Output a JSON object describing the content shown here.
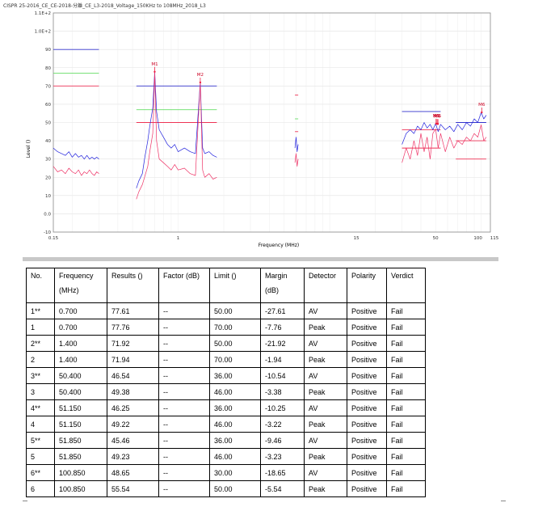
{
  "chart_data": {
    "type": "line",
    "title": "CISPR 25-2016_CE_CE-2018-分離_CE_L3-2018_Voltage_150KHz to 108MHz_2018_L3",
    "xlabel": "Frequency (MHz)",
    "ylabel": "Level ()",
    "x_scale": "log",
    "xlim": [
      0.15,
      115
    ],
    "ylim": [
      -10,
      110
    ],
    "x_ticks": [
      {
        "value": 0.15,
        "label": "0.15"
      },
      {
        "value": 1,
        "label": "1"
      },
      {
        "value": 15,
        "label": "15"
      },
      {
        "value": 50,
        "label": "50"
      },
      {
        "value": 100,
        "label": "100"
      },
      {
        "value": 115,
        "label": "115"
      }
    ],
    "y_ticks": [
      {
        "value": 110,
        "label": "1.1E+2"
      },
      {
        "value": 100,
        "label": "1.0E+2"
      },
      {
        "value": 90,
        "label": "90"
      },
      {
        "value": 80,
        "label": "80"
      },
      {
        "value": 70,
        "label": "70"
      },
      {
        "value": 60,
        "label": "60"
      },
      {
        "value": 50,
        "label": "50"
      },
      {
        "value": 40,
        "label": "40"
      },
      {
        "value": 30,
        "label": "30"
      },
      {
        "value": 20,
        "label": "20"
      },
      {
        "value": 10,
        "label": "10"
      },
      {
        "value": 0,
        "label": "0.0"
      },
      {
        "value": -10,
        "label": "-10"
      }
    ],
    "grid": true,
    "limit_lines": [
      {
        "color": "#3333cc",
        "x": [
          0.15,
          0.3
        ],
        "y": 90
      },
      {
        "color": "#66dd66",
        "x": [
          0.15,
          0.3
        ],
        "y": 77
      },
      {
        "color": "#ee3355",
        "x": [
          0.15,
          0.3
        ],
        "y": 70
      },
      {
        "color": "#3333cc",
        "x": [
          0.53,
          1.8
        ],
        "y": 70
      },
      {
        "color": "#66dd66",
        "x": [
          0.53,
          1.8
        ],
        "y": 57
      },
      {
        "color": "#ee3355",
        "x": [
          0.53,
          1.8
        ],
        "y": 50
      },
      {
        "color": "#ee3355",
        "x": [
          5.9,
          6.2
        ],
        "y": 65
      },
      {
        "color": "#66dd66",
        "x": [
          5.9,
          6.2
        ],
        "y": 52
      },
      {
        "color": "#ee3355",
        "x": [
          5.9,
          6.2
        ],
        "y": 45
      },
      {
        "color": "#3333cc",
        "x": [
          30,
          54
        ],
        "y": 56
      },
      {
        "color": "#ee3355",
        "x": [
          30,
          54
        ],
        "y": 46
      },
      {
        "color": "#ee3355",
        "x": [
          30,
          54
        ],
        "y": 36
      },
      {
        "color": "#3333cc",
        "x": [
          68,
          108
        ],
        "y": 50
      },
      {
        "color": "#ee3355",
        "x": [
          68,
          108
        ],
        "y": 40
      },
      {
        "color": "#ee3355",
        "x": [
          68,
          108
        ],
        "y": 30
      }
    ],
    "series": [
      {
        "color": "#2222dd",
        "x": [
          0.15,
          0.16,
          0.17,
          0.18,
          0.19,
          0.2,
          0.21,
          0.22,
          0.23,
          0.24,
          0.25,
          0.26,
          0.27,
          0.28,
          0.29,
          0.3
        ],
        "y": [
          36,
          34,
          33,
          32,
          34,
          31,
          33,
          31,
          32,
          30,
          32,
          30,
          31,
          30,
          31,
          30
        ]
      },
      {
        "color": "#ee3366",
        "x": [
          0.15,
          0.16,
          0.17,
          0.18,
          0.19,
          0.2,
          0.21,
          0.22,
          0.23,
          0.24,
          0.25,
          0.26,
          0.27,
          0.28,
          0.29,
          0.3
        ],
        "y": [
          26,
          23,
          24,
          22,
          25,
          23,
          22,
          24,
          21,
          23,
          22,
          24,
          22,
          21,
          23,
          22
        ]
      },
      {
        "color": "#2222dd",
        "x": [
          0.53,
          0.55,
          0.58,
          0.6,
          0.63,
          0.65,
          0.68,
          0.7,
          0.72,
          0.75,
          0.8,
          0.85,
          0.9,
          0.95,
          1.0,
          1.1,
          1.2,
          1.3,
          1.4,
          1.45,
          1.5,
          1.6,
          1.7,
          1.8
        ],
        "y": [
          14,
          18,
          22,
          30,
          40,
          48,
          58,
          77.8,
          56,
          46,
          42,
          38,
          36,
          38,
          34,
          36,
          34,
          33,
          71.9,
          36,
          33,
          34,
          32,
          31
        ]
      },
      {
        "color": "#ee3366",
        "x": [
          0.53,
          0.55,
          0.58,
          0.6,
          0.63,
          0.65,
          0.68,
          0.7,
          0.72,
          0.75,
          0.8,
          0.85,
          0.9,
          0.95,
          1.0,
          1.1,
          1.2,
          1.3,
          1.4,
          1.45,
          1.5,
          1.6,
          1.7,
          1.8
        ],
        "y": [
          8,
          12,
          16,
          20,
          26,
          34,
          44,
          77.6,
          40,
          30,
          28,
          26,
          24,
          27,
          24,
          25,
          22,
          21,
          71.9,
          24,
          20,
          22,
          19,
          20
        ]
      },
      {
        "color": "#2222dd",
        "x": [
          5.9,
          6.0,
          6.1,
          6.2
        ],
        "y": [
          36,
          42,
          34,
          38
        ]
      },
      {
        "color": "#ee3366",
        "x": [
          5.9,
          6.0,
          6.1,
          6.2
        ],
        "y": [
          28,
          33,
          26,
          30
        ]
      },
      {
        "color": "#2222dd",
        "x": [
          30,
          32,
          34,
          36,
          38,
          40,
          42,
          44,
          46,
          48,
          50,
          52,
          54,
          58,
          62,
          66,
          70,
          75,
          80,
          85,
          90,
          95,
          100,
          104,
          108
        ],
        "y": [
          38,
          44,
          46,
          44,
          48,
          46,
          50,
          47,
          49,
          46,
          49.4,
          45,
          49,
          46,
          48,
          45,
          49,
          46,
          50,
          48,
          52,
          50,
          55.5,
          52,
          54
        ]
      },
      {
        "color": "#ee3366",
        "x": [
          30,
          32,
          34,
          36,
          38,
          40,
          42,
          44,
          46,
          48,
          50,
          52,
          54,
          58,
          62,
          66,
          70,
          75,
          80,
          85,
          90,
          95,
          100,
          104,
          108
        ],
        "y": [
          28,
          36,
          30,
          40,
          32,
          44,
          34,
          42,
          30,
          44,
          46.5,
          36,
          44,
          34,
          42,
          36,
          40,
          38,
          42,
          40,
          44,
          42,
          48.7,
          40,
          42
        ]
      }
    ],
    "markers": [
      {
        "label": "M1",
        "x": 0.7,
        "y": 77.76
      },
      {
        "label": "M2",
        "x": 1.4,
        "y": 71.94
      },
      {
        "label": "M3",
        "x": 50.4,
        "y": 49.38
      },
      {
        "label": "M4",
        "x": 51.15,
        "y": 49.22
      },
      {
        "label": "M5",
        "x": 51.85,
        "y": 49.23
      },
      {
        "label": "M6",
        "x": 100.85,
        "y": 55.54
      }
    ]
  },
  "table": {
    "headers": [
      "No.",
      "Frequency",
      "Results ()",
      "Factor (dB)",
      "Limit ()",
      "Margin",
      "Detector",
      "Polarity",
      "Verdict"
    ],
    "header_second_lines": [
      "",
      "(MHz)",
      "",
      "",
      "",
      "(dB)",
      "",
      "",
      ""
    ],
    "rows": [
      [
        "1**",
        "0.700",
        "77.61",
        "--",
        "50.00",
        "-27.61",
        "AV",
        "Positive",
        "Fail"
      ],
      [
        "1",
        "0.700",
        "77.76",
        "--",
        "70.00",
        "-7.76",
        "Peak",
        "Positive",
        "Fail"
      ],
      [
        "2**",
        "1.400",
        "71.92",
        "--",
        "50.00",
        "-21.92",
        "AV",
        "Positive",
        "Fail"
      ],
      [
        "2",
        "1.400",
        "71.94",
        "--",
        "70.00",
        "-1.94",
        "Peak",
        "Positive",
        "Fail"
      ],
      [
        "3**",
        "50.400",
        "46.54",
        "--",
        "36.00",
        "-10.54",
        "AV",
        "Positive",
        "Fail"
      ],
      [
        "3",
        "50.400",
        "49.38",
        "--",
        "46.00",
        "-3.38",
        "Peak",
        "Positive",
        "Fail"
      ],
      [
        "4**",
        "51.150",
        "46.25",
        "--",
        "36.00",
        "-10.25",
        "AV",
        "Positive",
        "Fail"
      ],
      [
        "4",
        "51.150",
        "49.22",
        "--",
        "46.00",
        "-3.22",
        "Peak",
        "Positive",
        "Fail"
      ],
      [
        "5**",
        "51.850",
        "45.46",
        "--",
        "36.00",
        "-9.46",
        "AV",
        "Positive",
        "Fail"
      ],
      [
        "5",
        "51.850",
        "49.23",
        "--",
        "46.00",
        "-3.23",
        "Peak",
        "Positive",
        "Fail"
      ],
      [
        "6**",
        "100.850",
        "48.65",
        "--",
        "30.00",
        "-18.65",
        "AV",
        "Positive",
        "Fail"
      ],
      [
        "6",
        "100.850",
        "55.54",
        "--",
        "50.00",
        "-5.54",
        "Peak",
        "Positive",
        "Fail"
      ]
    ]
  }
}
